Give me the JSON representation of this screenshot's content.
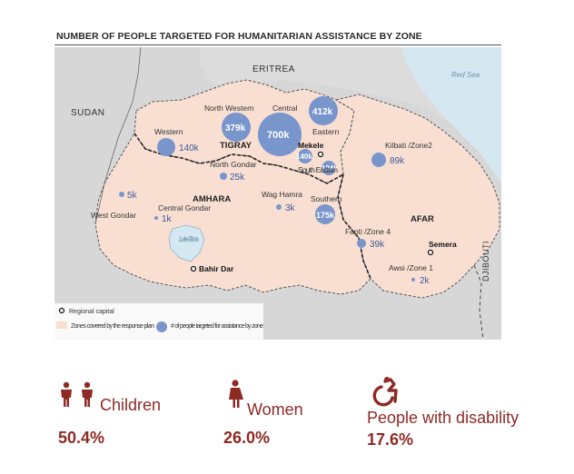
{
  "title": "NUMBER OF PEOPLE TARGETED FOR HUMANITARIAN ASSISTANCE BY ZONE",
  "map": {
    "countries": {
      "eritrea": "ERITREA",
      "sudan": "SUDAN",
      "djibouti": "DJIBOUTI",
      "red_sea": "Red Sea"
    },
    "regions": {
      "tigray": "TIGRAY",
      "amhara": "AMHARA",
      "afar": "AFAR"
    },
    "zones": {
      "western": "Western",
      "north_western": "North Western",
      "central": "Central",
      "eastern": "Eastern",
      "mekele": "Mekele",
      "south_eastern": "South Eastern",
      "southern": "Southern",
      "north_gondar": "North Gondar",
      "wag_hamra": "Wag Hamra",
      "west_gondar": "West Gondar",
      "central_gondar": "Central Gondar",
      "kilbati": "Kilbati /Zone2",
      "fanti": "Fanti /Zone 4",
      "awsi": "Awsi /Zone 1",
      "lake_tana": "Lake Tana",
      "bahir_dar": "Bahir Dar",
      "semera": "Semera"
    },
    "values": {
      "western": "140k",
      "north_western": "379k",
      "central": "700k",
      "eastern": "412k",
      "mekele": "140k",
      "south_eastern": "124k",
      "southern": "175k",
      "north_gondar": "25k",
      "wag_hamra": "3k",
      "west_gondar": "5k",
      "central_gondar": "1k",
      "kilbati": "89k",
      "fanti": "39k",
      "awsi": "2k"
    },
    "legend": {
      "capital": "Regional capital",
      "zones": "Zones covered by the response plan",
      "bubbles": "# of people targeted for assistance by zone"
    }
  },
  "stats": {
    "children": {
      "label": "Children",
      "value": "50.4%"
    },
    "women": {
      "label": "Women",
      "value": "26.0%"
    },
    "disability": {
      "label": "People with disability",
      "value": "17.6%"
    }
  },
  "colors": {
    "zone_fill": "#f8dfd2",
    "land": "#d7d7d7",
    "water": "#d5e8f2",
    "bubble": "#7895cc",
    "accent": "#8e2a24"
  }
}
